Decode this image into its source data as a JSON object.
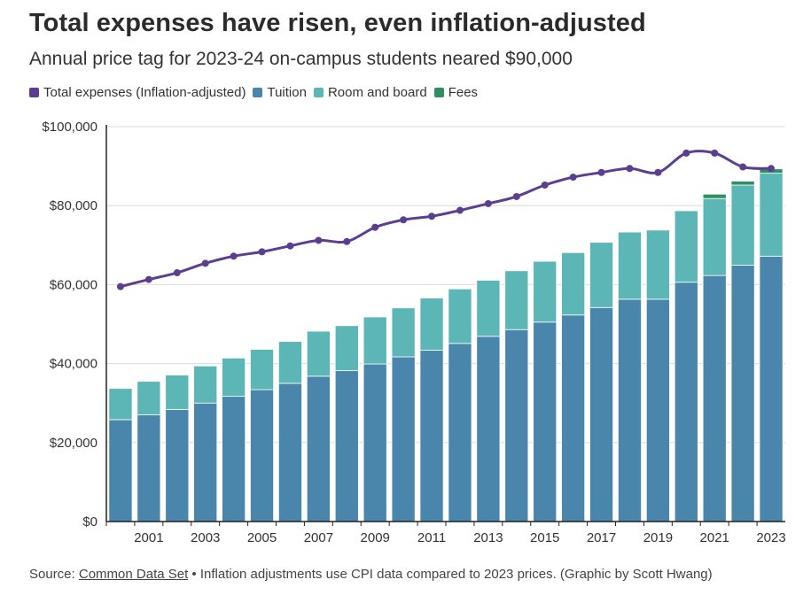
{
  "title": "Total expenses have risen, even inflation-adjusted",
  "subtitle": "Annual price tag for 2023-24 on-campus students neared $90,000",
  "legend": [
    {
      "label": "Total expenses (Inflation-adjusted)",
      "color": "#5c3e91"
    },
    {
      "label": "Tuition",
      "color": "#4a86ab"
    },
    {
      "label": "Room and board",
      "color": "#5bb6b5"
    },
    {
      "label": "Fees",
      "color": "#2f8f63"
    }
  ],
  "source": {
    "prefix": "Source: ",
    "link_text": "Common Data Set",
    "suffix": " • Inflation adjustments use CPI data compared to 2023 prices. (Graphic by Scott Hwang)"
  },
  "chart_data": {
    "type": "bar",
    "stacked": true,
    "years": [
      2000,
      2001,
      2002,
      2003,
      2004,
      2005,
      2006,
      2007,
      2008,
      2009,
      2010,
      2011,
      2012,
      2013,
      2014,
      2015,
      2016,
      2017,
      2018,
      2019,
      2020,
      2021,
      2022,
      2023
    ],
    "x_tick_labels": [
      "2001",
      "2003",
      "2005",
      "2007",
      "2009",
      "2011",
      "2013",
      "2015",
      "2017",
      "2019",
      "2021",
      "2023"
    ],
    "y_tick_labels": [
      "$0",
      "$20,000",
      "$40,000",
      "$60,000",
      "$80,000",
      "$100,000"
    ],
    "ylim": [
      0,
      100000
    ],
    "y_ticks": [
      0,
      20000,
      40000,
      60000,
      80000,
      100000
    ],
    "grid": true,
    "legend_position": "top-left",
    "series": [
      {
        "name": "Tuition",
        "color": "#4a86ab",
        "values": [
          25800,
          27000,
          28400,
          30000,
          31700,
          33400,
          35000,
          36800,
          38200,
          39900,
          41700,
          43400,
          45100,
          46900,
          48600,
          50500,
          52300,
          54200,
          56300,
          56300,
          60600,
          62300,
          64900,
          67200
        ]
      },
      {
        "name": "Room and board",
        "color": "#5bb6b5",
        "values": [
          7900,
          8500,
          8700,
          9400,
          9700,
          10200,
          10600,
          11400,
          11400,
          11900,
          12400,
          13200,
          13800,
          14200,
          14900,
          15400,
          15800,
          16500,
          17000,
          17500,
          18100,
          19500,
          20300,
          21000
        ]
      },
      {
        "name": "Fees",
        "color": "#2f8f63",
        "values": [
          0,
          0,
          0,
          0,
          0,
          0,
          0,
          0,
          0,
          0,
          0,
          0,
          0,
          0,
          0,
          0,
          0,
          0,
          0,
          0,
          0,
          1100,
          1000,
          1100
        ]
      }
    ],
    "line_series": {
      "name": "Total expenses (Inflation-adjusted)",
      "color": "#5c3e91",
      "values": [
        59500,
        61300,
        63000,
        65400,
        67200,
        68300,
        69800,
        71200,
        70900,
        74500,
        76400,
        77300,
        78800,
        80500,
        82300,
        85200,
        87200,
        88400,
        89400,
        88400,
        93300,
        93300,
        89800,
        89400
      ]
    }
  }
}
